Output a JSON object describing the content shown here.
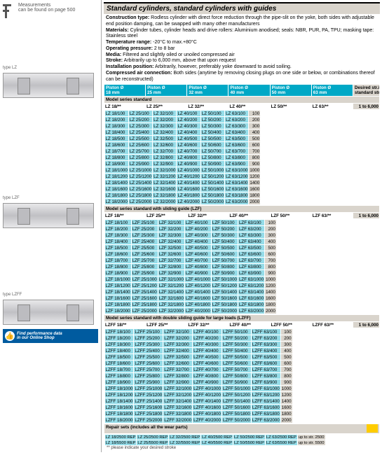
{
  "left": {
    "meas_line1": "Measurements",
    "meas_line2": "can be found on page 500",
    "types": [
      "type LZ",
      "type LZF",
      "type LZFF"
    ],
    "tip_line1": "Find performance data",
    "tip_line2": "in our Online Shop"
  },
  "title": "Standard cylinders, standard cylinders with guides",
  "specs": [
    {
      "b": "Construction type:",
      "t": " Rodless cylinder with direct force reduction through the pipe-slit on the yoke, both sides with adjustable end position damping, can be swapped with many other manufacturers"
    },
    {
      "b": "Materials:",
      "t": " Cylinder tubes, cylinder heads and drive rollers: Aluminium anodised; seals: NBR, PUR, PA, TPU; masking tape: Stainless steel"
    },
    {
      "b": "Temperature range:",
      "t": " -20°C to max.+80°C"
    },
    {
      "b": "Operating pressure:",
      "t": " 2 to 8 bar"
    },
    {
      "b": "Media:",
      "t": " Filtered and slightly oiled or unoiled compressed air"
    },
    {
      "b": "Stroke:",
      "t": " Arbitrarily up to 6,000 mm, above that upon request"
    },
    {
      "b": "Installation position:",
      "t": " Arbitrarily, however, preferably yoke downward to avoid soiling."
    },
    {
      "b": "Compressed air connection:",
      "t": " Both sides (anytime by removing closing plugs on one side or below, or combinations thereof can be reconstructed)"
    }
  ],
  "piston_headers": [
    {
      "l1": "Piston Ø",
      "l2": "18 mm"
    },
    {
      "l1": "Piston Ø",
      "l2": "25 mm"
    },
    {
      "l1": "Piston Ø",
      "l2": "32 mm"
    },
    {
      "l1": "Piston Ø",
      "l2": "40 mm"
    },
    {
      "l1": "Piston Ø",
      "l2": "50 mm"
    },
    {
      "l1": "Piston Ø",
      "l2": "63 mm"
    }
  ],
  "desired": {
    "l1": "Desired str./",
    "l2": "standard str."
  },
  "sections": [
    {
      "name": "Model series standard",
      "hdr": [
        "LZ 18/**",
        "LZ 25/**",
        "LZ 32/**",
        "LZ 40/**",
        "LZ 50/**",
        "LZ 63/**",
        "1 to 6,000"
      ],
      "prefix": "LZ",
      "strokes": [
        100,
        200,
        300,
        400,
        500,
        600,
        700,
        800,
        900,
        1000,
        1200,
        1400,
        1600,
        1800,
        2000
      ]
    },
    {
      "name": "Model series standard with sliding guide (LZF)",
      "hdr": [
        "LZF 18/**",
        "LZF 25/**",
        "LZF 32/**",
        "LZF 40/**",
        "LZF 50/**",
        "LZF 63/**",
        "1 to 6,000"
      ],
      "prefix": "LZF",
      "strokes": [
        100,
        200,
        300,
        400,
        500,
        600,
        700,
        800,
        900,
        1000,
        1200,
        1400,
        1600,
        1800,
        2000
      ]
    },
    {
      "name": "Model series standard with double sliding guide for large loads (LZFF)",
      "hdr": [
        "LZFF 18/**",
        "LZFF 25/**",
        "LZFF 32/**",
        "LZFF 40/**",
        "LZFF 50/**",
        "LZFF 63/**",
        "1 to 6,000"
      ],
      "prefix": "LZFF",
      "strokes": [
        100,
        200,
        300,
        400,
        500,
        600,
        700,
        800,
        900,
        1000,
        1200,
        1400,
        1600,
        1800,
        2000
      ]
    }
  ],
  "repair": {
    "name": "Repair sets (includes all the wear parts)",
    "cells": [
      "LZ 18/2500 REP",
      "LZ 25/2500 REP",
      "LZ 32/2500 REP",
      "LZ 40/2500 REP",
      "LZ 50/2500 REP",
      "LZ 63/2500 REP",
      "up to str. 2500"
    ],
    "cells2": [
      "LZ 18/5500 REP",
      "LZ 25/5500 REP",
      "LZ 32/5500 REP",
      "LZ 40/5500 REP",
      "LZ 50/5500 REP",
      "LZ 63/5500 REP",
      "up to str. 5500"
    ]
  },
  "footnote": "** please indicate your desired stroke",
  "diameters": [
    18,
    25,
    32,
    40,
    50,
    63
  ]
}
